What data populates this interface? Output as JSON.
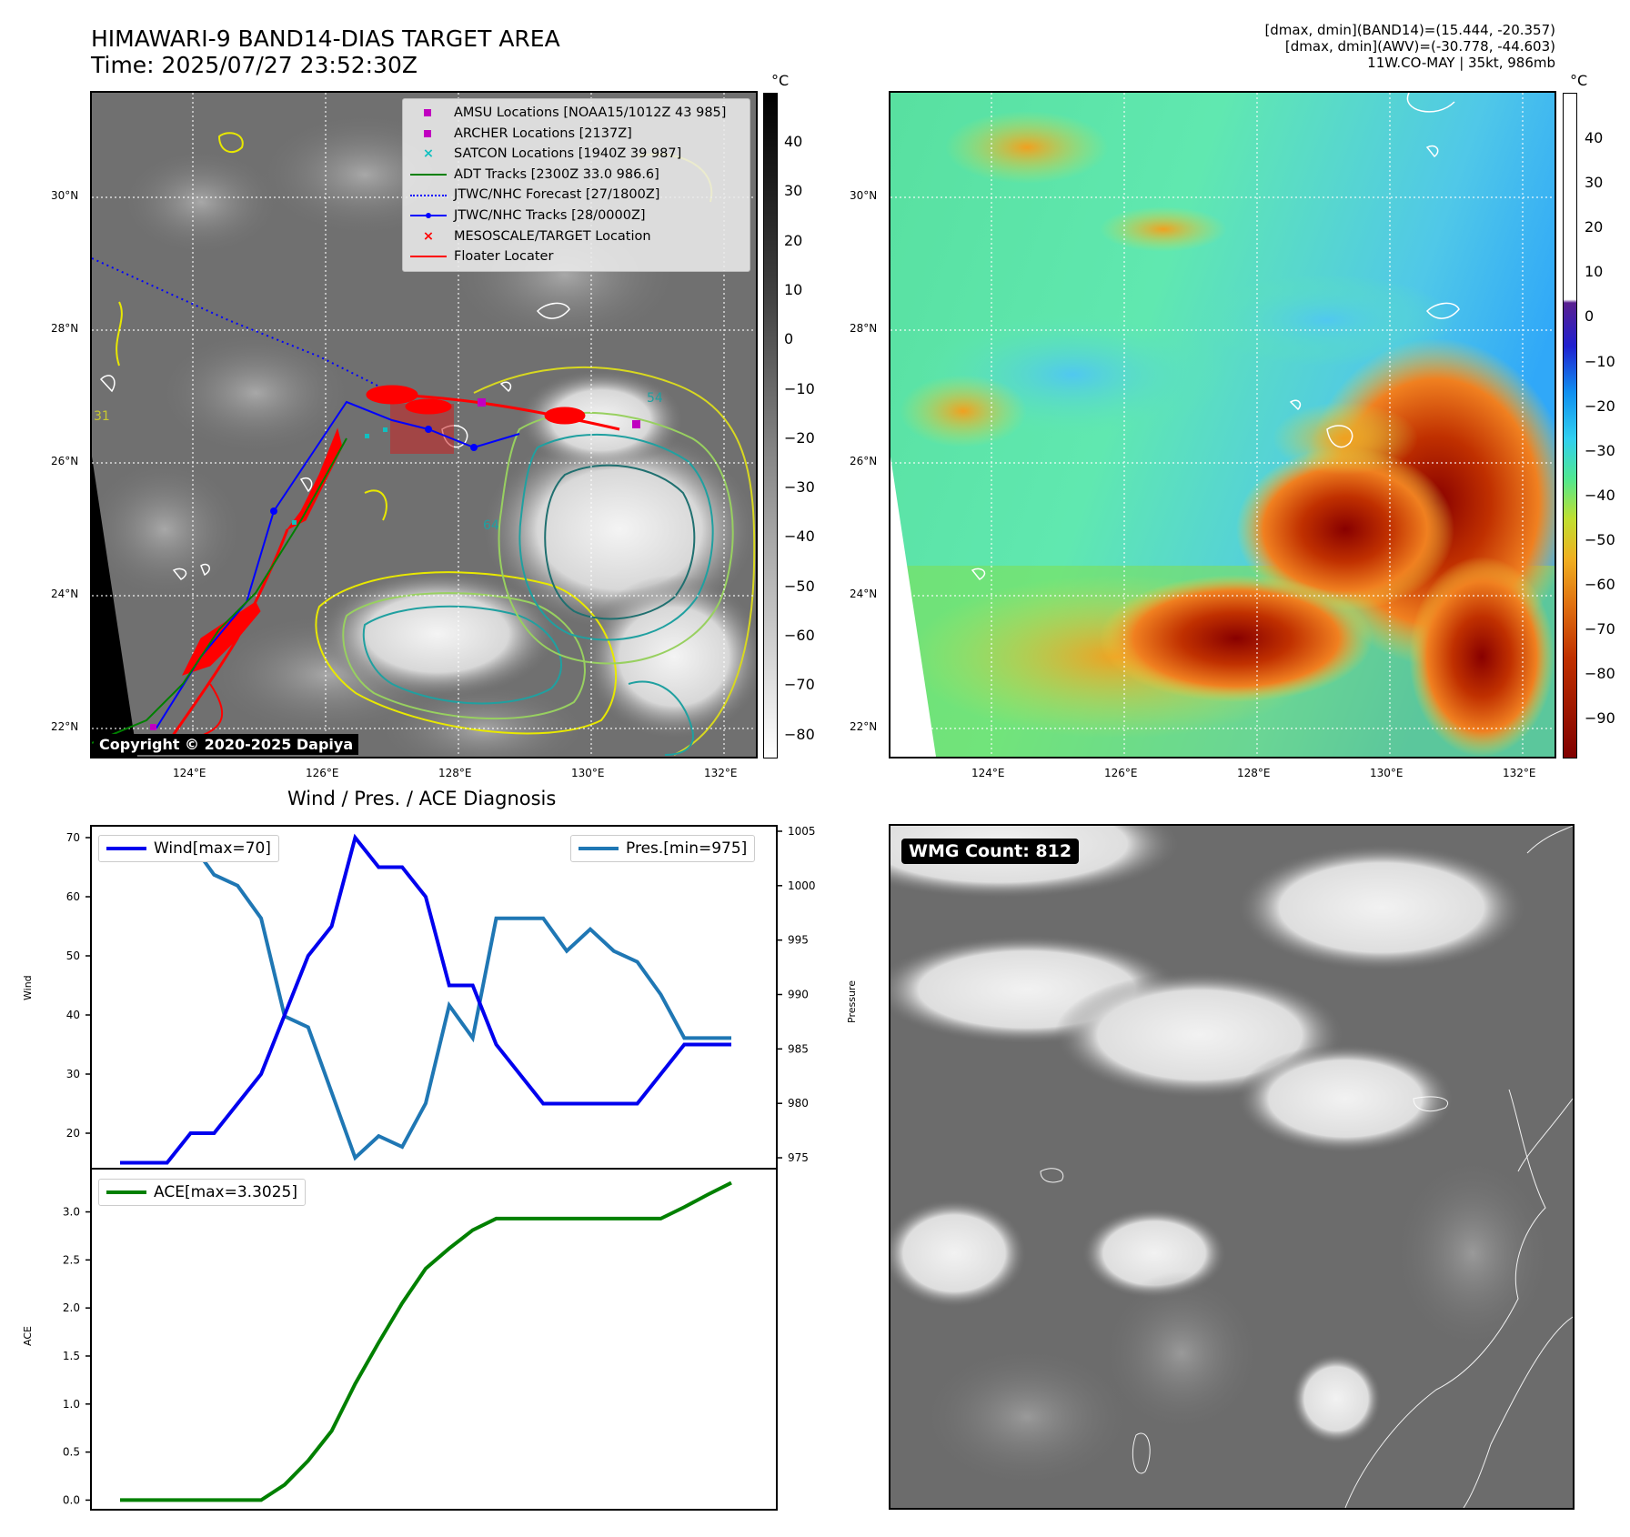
{
  "header": {
    "title_line1": "HIMAWARI-9 BAND14-DIAS TARGET AREA",
    "title_line2": "Time: 2025/07/27 23:52:30Z",
    "info_line1": "[dmax, dmin](BAND14)=(15.444, -20.357)",
    "info_line2": "[dmax, dmin](AWV)=(-30.778, -44.603)",
    "info_line3": "11W.CO-MAY | 35kt, 986mb"
  },
  "map": {
    "lat_labels": [
      "30°N",
      "28°N",
      "26°N",
      "24°N",
      "22°N"
    ],
    "lon_labels": [
      "124°E",
      "126°E",
      "128°E",
      "130°E",
      "132°E"
    ],
    "copyright": "Copyright © 2020-2025 Dapiya",
    "legend": [
      {
        "label": "AMSU Locations [NOAA15/1012Z 43 985]",
        "marker": "square",
        "color": "#c000c0"
      },
      {
        "label": "ARCHER Locations [2137Z]",
        "marker": "square",
        "color": "#c000c0"
      },
      {
        "label": "SATCON Locations [1940Z 39 987]",
        "marker": "x",
        "color": "#10c0c0"
      },
      {
        "label": "ADT Tracks [2300Z 33.0 986.6]",
        "marker": "line",
        "color": "#008000"
      },
      {
        "label": "JTWC/NHC Forecast [27/1800Z]",
        "marker": "dotted",
        "color": "#0000ff"
      },
      {
        "label": "JTWC/NHC Tracks [28/0000Z]",
        "marker": "line-dot",
        "color": "#0000ff"
      },
      {
        "label": "MESOSCALE/TARGET Location",
        "marker": "x",
        "color": "#ff0000"
      },
      {
        "label": "Floater Locater",
        "marker": "line",
        "color": "#ff0000"
      }
    ],
    "contour_labels": [
      "54",
      "64",
      "31"
    ]
  },
  "colorbar_left": {
    "unit": "°C",
    "ticks": [
      "40",
      "30",
      "20",
      "10",
      "0",
      "−10",
      "−20",
      "−30",
      "−40",
      "−50",
      "−60",
      "−70",
      "−80"
    ]
  },
  "colorbar_right": {
    "unit": "°C",
    "ticks": [
      "40",
      "30",
      "20",
      "10",
      "0",
      "−10",
      "−20",
      "−30",
      "−40",
      "−50",
      "−60",
      "−70",
      "−80",
      "−90"
    ]
  },
  "wmg": {
    "label": "WMG Count: 812"
  },
  "chart_data": [
    {
      "type": "line",
      "title": "Wind / Pres. / ACE Diagnosis",
      "ylabel": "Wind",
      "y2label": "Pressure",
      "ylim": [
        14,
        72
      ],
      "y2lim": [
        974,
        1005.5
      ],
      "y_ticks": [
        20,
        30,
        40,
        50,
        60,
        70
      ],
      "y2_ticks": [
        975,
        980,
        985,
        990,
        995,
        1000,
        1005
      ],
      "x": [
        0,
        1,
        2,
        3,
        4,
        5,
        6,
        7,
        8,
        9,
        10,
        11,
        12,
        13,
        14,
        15,
        16,
        17,
        18,
        19,
        20,
        21,
        22,
        23,
        24,
        25,
        26
      ],
      "series": [
        {
          "name": "Wind[max=70]",
          "axis": "left",
          "color": "#0000ee",
          "values": [
            15,
            15,
            15,
            20,
            20,
            25,
            30,
            40,
            50,
            55,
            70,
            65,
            65,
            60,
            45,
            45,
            35,
            30,
            25,
            25,
            25,
            25,
            25,
            30,
            35,
            35,
            35
          ]
        },
        {
          "name": "Pres.[min=975]",
          "axis": "right",
          "color": "#1f77b4",
          "values": [
            1004,
            1004,
            1004,
            1004,
            1001,
            1000,
            997,
            988,
            987,
            981,
            975,
            977,
            976,
            980,
            989,
            986,
            997,
            997,
            997,
            994,
            996,
            994,
            993,
            990,
            986,
            986,
            986
          ]
        }
      ]
    },
    {
      "type": "line",
      "ylabel": "ACE",
      "ylim": [
        -0.1,
        3.45
      ],
      "y_ticks": [
        "0.0",
        "0.5",
        "1.0",
        "1.5",
        "2.0",
        "2.5",
        "3.0"
      ],
      "x": [
        0,
        1,
        2,
        3,
        4,
        5,
        6,
        7,
        8,
        9,
        10,
        11,
        12,
        13,
        14,
        15,
        16,
        17,
        18,
        19,
        20,
        21,
        22,
        23,
        24,
        25,
        26
      ],
      "series": [
        {
          "name": "ACE[max=3.3025]",
          "color": "#008000",
          "values": [
            0,
            0,
            0,
            0,
            0,
            0,
            0,
            0.16,
            0.41,
            0.72,
            1.21,
            1.64,
            2.05,
            2.41,
            2.62,
            2.81,
            2.93,
            2.93,
            2.93,
            2.93,
            2.93,
            2.93,
            2.93,
            2.93,
            3.05,
            3.18,
            3.3025
          ]
        }
      ]
    }
  ]
}
